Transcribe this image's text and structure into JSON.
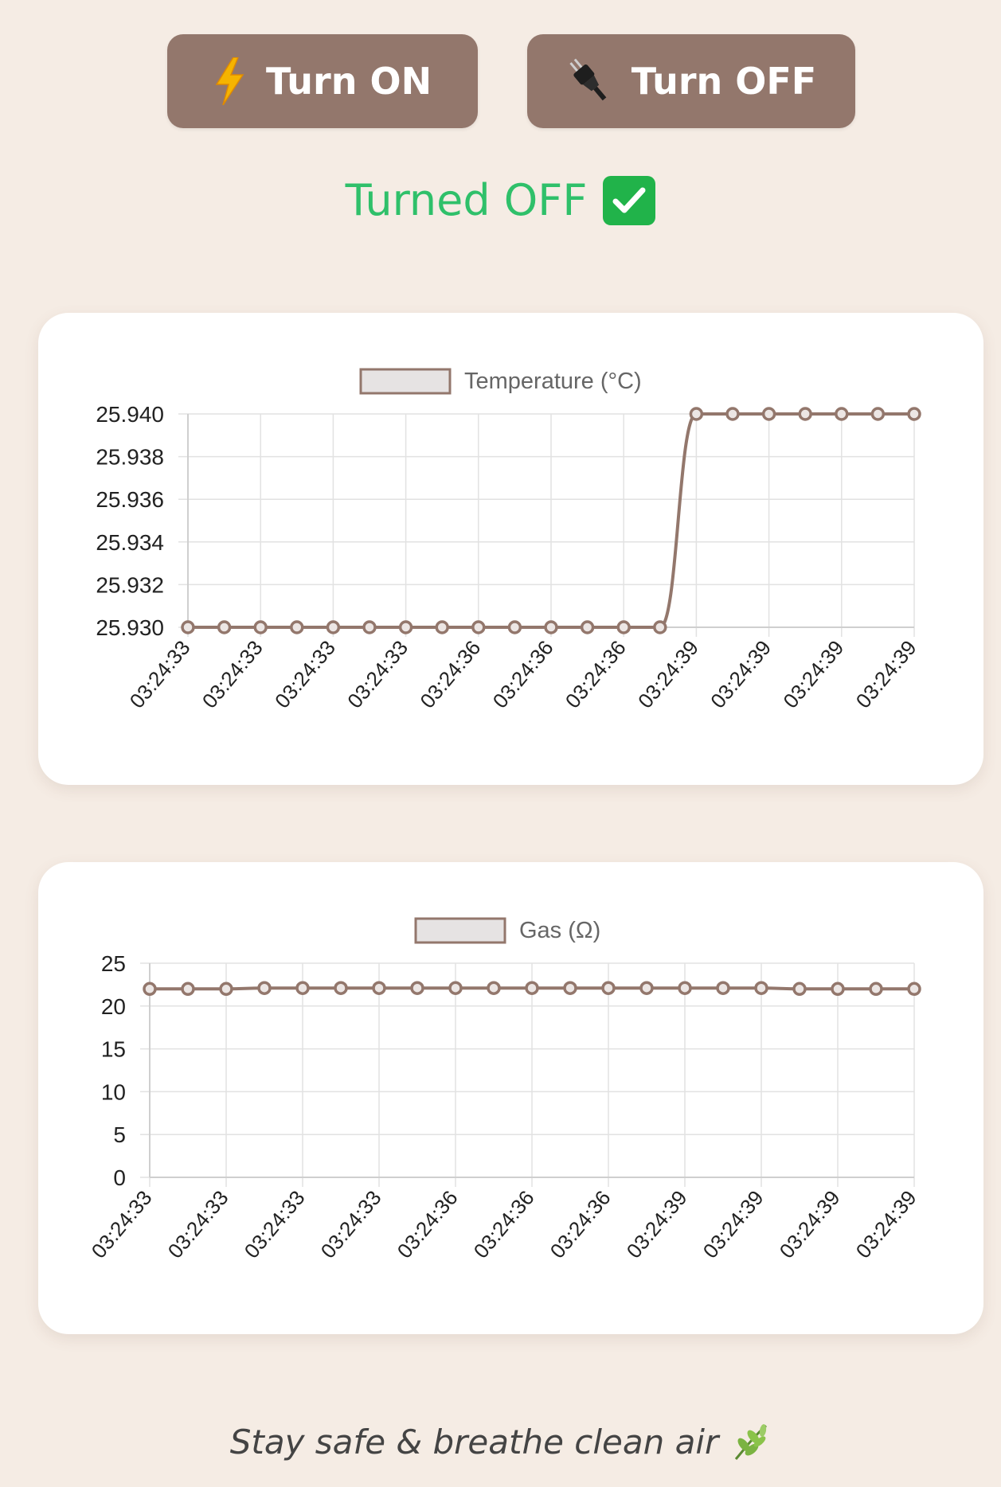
{
  "controls": {
    "turn_on_label": "Turn ON",
    "turn_off_label": "Turn OFF",
    "turn_on_icon": "lightning-bolt-icon",
    "turn_off_icon": "electric-plug-icon",
    "button_color": "#93776c"
  },
  "status": {
    "text": "Turned OFF",
    "icon": "check-mark-icon",
    "color": "#2fc06a"
  },
  "chart_data": [
    {
      "type": "line",
      "legend": "Temperature (°C)",
      "legend_position": "top",
      "grid": true,
      "line_color": "#93776c",
      "ylim": [
        25.93,
        25.94
      ],
      "y_ticks": [
        "25.940",
        "25.938",
        "25.936",
        "25.934",
        "25.932",
        "25.930"
      ],
      "x_tick_labels": [
        "03:24:33",
        "03:24:33",
        "03:24:33",
        "03:24:33",
        "03:24:36",
        "03:24:36",
        "03:24:36",
        "03:24:39",
        "03:24:39",
        "03:24:39",
        "03:24:39"
      ],
      "values": [
        25.93,
        25.93,
        25.93,
        25.93,
        25.93,
        25.93,
        25.93,
        25.93,
        25.93,
        25.93,
        25.93,
        25.93,
        25.93,
        25.93,
        25.94,
        25.94,
        25.94,
        25.94,
        25.94,
        25.94,
        25.94
      ]
    },
    {
      "type": "line",
      "legend": "Gas (Ω)",
      "legend_position": "top",
      "grid": true,
      "line_color": "#93776c",
      "ylim": [
        0,
        25
      ],
      "y_ticks": [
        "25",
        "20",
        "15",
        "10",
        "5",
        "0"
      ],
      "x_tick_labels": [
        "03:24:33",
        "03:24:33",
        "03:24:33",
        "03:24:33",
        "03:24:36",
        "03:24:36",
        "03:24:36",
        "03:24:39",
        "03:24:39",
        "03:24:39",
        "03:24:39"
      ],
      "values": [
        22.0,
        22.0,
        22.0,
        22.1,
        22.1,
        22.1,
        22.1,
        22.1,
        22.1,
        22.1,
        22.1,
        22.1,
        22.1,
        22.1,
        22.1,
        22.1,
        22.1,
        22.0,
        22.0,
        22.0,
        22.0
      ]
    }
  ],
  "footer": {
    "text": "Stay safe & breathe clean air",
    "icon": "herb-leaf-icon"
  }
}
